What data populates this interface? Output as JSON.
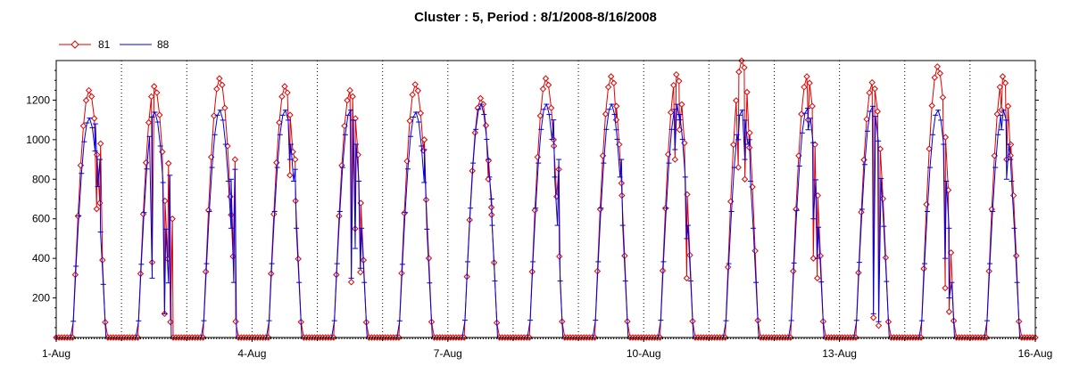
{
  "chart_data": {
    "type": "line",
    "title": "Cluster : 5, Period : 8/1/2008-8/16/2008",
    "xlabel": "",
    "ylabel": "",
    "xlim": [
      0,
      15
    ],
    "ylim": [
      0,
      1400
    ],
    "x_ticks": [
      {
        "label": "1-Aug",
        "value": 0
      },
      {
        "label": "4-Aug",
        "value": 3
      },
      {
        "label": "7-Aug",
        "value": 6
      },
      {
        "label": "10-Aug",
        "value": 9
      },
      {
        "label": "13-Aug",
        "value": 12
      },
      {
        "label": "16-Aug",
        "value": 15
      }
    ],
    "y_ticks": [
      200,
      400,
      600,
      800,
      1000,
      1200
    ],
    "grid": "vertical dotted at each day",
    "legend_position": "top-left",
    "series": [
      {
        "name": "81",
        "color": "#e00000",
        "marker": "diamond",
        "days": [
          {
            "peak": 1250,
            "dips": [
              [
                0.62,
                650
              ],
              [
                0.68,
                980
              ]
            ]
          },
          {
            "peak": 1270,
            "dips": [
              [
                0.47,
                380
              ],
              [
                0.66,
                120
              ],
              [
                0.72,
                880
              ],
              [
                0.78,
                600
              ]
            ]
          },
          {
            "peak": 1310,
            "dips": [
              [
                0.68,
                620
              ],
              [
                0.74,
                900
              ]
            ]
          },
          {
            "peak": 1270,
            "dips": [
              [
                0.58,
                820
              ],
              [
                0.66,
                900
              ]
            ]
          },
          {
            "peak": 1250,
            "dips": [
              [
                0.52,
                280
              ],
              [
                0.58,
                550
              ],
              [
                0.66,
                330
              ]
            ]
          },
          {
            "peak": 1280,
            "dips": [
              [
                0.64,
                1000
              ]
            ]
          },
          {
            "peak": 1210,
            "dips": [
              [
                0.62,
                800
              ],
              [
                0.67,
                620
              ]
            ]
          },
          {
            "peak": 1310,
            "dips": [
              [
                0.62,
                1000
              ],
              [
                0.7,
                850
              ]
            ]
          },
          {
            "peak": 1320,
            "dips": [
              [
                0.58,
                1100
              ],
              [
                0.66,
                780
              ]
            ]
          },
          {
            "peak": 1330,
            "dips": [
              [
                0.48,
                900
              ],
              [
                0.55,
                1050
              ],
              [
                0.66,
                300
              ]
            ]
          },
          {
            "peak": 1400,
            "dips": [
              [
                0.45,
                860
              ],
              [
                0.55,
                800
              ],
              [
                0.62,
                960
              ]
            ]
          },
          {
            "peak": 1320,
            "dips": [
              [
                0.52,
                1100
              ],
              [
                0.6,
                400
              ],
              [
                0.66,
                300
              ]
            ]
          },
          {
            "peak": 1290,
            "dips": [
              [
                0.52,
                100
              ],
              [
                0.6,
                60
              ]
            ]
          },
          {
            "peak": 1370,
            "dips": [
              [
                0.62,
                250
              ],
              [
                0.68,
                130
              ]
            ]
          },
          {
            "peak": 1320,
            "dips": [
              [
                0.48,
                1150
              ],
              [
                0.56,
                900
              ],
              [
                0.62,
                920
              ]
            ]
          }
        ]
      },
      {
        "name": "88",
        "color": "#0000e0",
        "marker": "dash",
        "days": [
          {
            "peak": 1110,
            "dips": [
              [
                0.6,
                1080
              ],
              [
                0.67,
                900
              ]
            ]
          },
          {
            "peak": 1140,
            "dips": [
              [
                0.47,
                300
              ],
              [
                0.66,
                120
              ],
              [
                0.74,
                820
              ]
            ]
          },
          {
            "peak": 1150,
            "dips": [
              [
                0.68,
                800
              ],
              [
                0.74,
                850
              ]
            ]
          },
          {
            "peak": 1150,
            "dips": [
              [
                0.58,
                900
              ],
              [
                0.66,
                850
              ]
            ]
          },
          {
            "peak": 1150,
            "dips": [
              [
                0.52,
                300
              ],
              [
                0.58,
                450
              ],
              [
                0.66,
                350
              ]
            ]
          },
          {
            "peak": 1140,
            "dips": [
              [
                0.64,
                950
              ]
            ]
          },
          {
            "peak": 1180,
            "dips": [
              [
                0.62,
                900
              ],
              [
                0.67,
                700
              ]
            ]
          },
          {
            "peak": 1180,
            "dips": [
              [
                0.62,
                1100
              ],
              [
                0.7,
                900
              ]
            ]
          },
          {
            "peak": 1180,
            "dips": [
              [
                0.58,
                1050
              ],
              [
                0.66,
                900
              ]
            ]
          },
          {
            "peak": 1180,
            "dips": [
              [
                0.48,
                950
              ],
              [
                0.55,
                1100
              ],
              [
                0.66,
                500
              ]
            ]
          },
          {
            "peak": 1150,
            "dips": [
              [
                0.45,
                1000
              ],
              [
                0.55,
                900
              ],
              [
                0.62,
                1000
              ]
            ]
          },
          {
            "peak": 1160,
            "dips": [
              [
                0.52,
                1050
              ],
              [
                0.6,
                600
              ],
              [
                0.66,
                400
              ]
            ]
          },
          {
            "peak": 1170,
            "dips": [
              [
                0.52,
                120
              ],
              [
                0.6,
                80
              ]
            ]
          },
          {
            "peak": 1150,
            "dips": [
              [
                0.62,
                400
              ],
              [
                0.68,
                200
              ]
            ]
          },
          {
            "peak": 1150,
            "dips": [
              [
                0.48,
                1050
              ],
              [
                0.56,
                800
              ],
              [
                0.62,
                900
              ]
            ]
          }
        ]
      }
    ]
  }
}
